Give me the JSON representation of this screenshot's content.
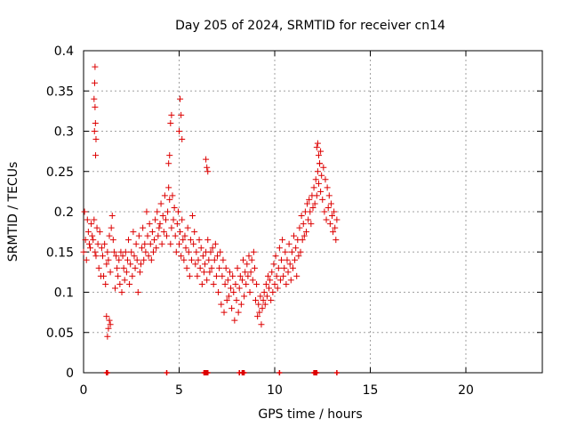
{
  "chart_data": {
    "type": "scatter",
    "title": "Day 205 of 2024, SRMTID for receiver cn14",
    "xlabel": "GPS time / hours",
    "ylabel": "SRMTID / TECUs",
    "xlim": [
      0,
      24
    ],
    "ylim": [
      0,
      0.4
    ],
    "xticks": [
      0,
      5,
      10,
      15,
      20
    ],
    "yticks": [
      0,
      0.05,
      0.1,
      0.15,
      0.2,
      0.25,
      0.3,
      0.35,
      0.4
    ],
    "ytick_labels": [
      "0",
      "0.05",
      "0.1",
      "0.15",
      "0.2",
      "0.25",
      "0.3",
      "0.35",
      "0.4"
    ],
    "grid": true,
    "marker": "+",
    "color": "#dd0000",
    "series": [
      {
        "name": "SRMTID",
        "x": [
          0.0,
          0.05,
          0.1,
          0.15,
          0.2,
          0.25,
          0.3,
          0.35,
          0.4,
          0.45,
          0.5,
          0.55,
          0.6,
          0.65,
          0.7,
          0.75,
          0.8,
          0.85,
          0.9,
          0.95,
          1.0,
          1.05,
          1.1,
          1.15,
          1.2,
          1.25,
          1.3,
          1.35,
          1.4,
          1.45,
          1.5,
          1.55,
          1.6,
          1.65,
          1.7,
          1.75,
          1.8,
          1.85,
          1.9,
          1.95,
          2.0,
          2.05,
          2.1,
          2.15,
          2.2,
          2.25,
          2.3,
          2.35,
          2.4,
          2.45,
          2.5,
          2.55,
          2.6,
          2.65,
          2.7,
          2.75,
          2.8,
          2.85,
          2.9,
          2.95,
          3.0,
          3.05,
          3.1,
          3.15,
          3.2,
          3.25,
          3.3,
          3.35,
          3.4,
          3.45,
          3.5,
          3.55,
          3.6,
          3.65,
          3.7,
          3.75,
          3.8,
          3.85,
          3.9,
          3.95,
          4.0,
          4.05,
          4.1,
          4.15,
          4.2,
          4.25,
          4.3,
          4.35,
          4.4,
          4.45,
          4.5,
          4.55,
          4.6,
          4.65,
          4.7,
          4.75,
          4.8,
          4.85,
          4.9,
          4.95,
          5.0,
          5.05,
          5.1,
          5.15,
          5.2,
          5.25,
          5.3,
          5.35,
          5.4,
          5.45,
          5.5,
          5.55,
          5.6,
          5.65,
          5.7,
          5.75,
          5.8,
          5.85,
          5.9,
          5.95,
          6.0,
          6.05,
          6.1,
          6.15,
          6.2,
          6.25,
          6.3,
          6.35,
          6.4,
          6.45,
          6.5,
          6.55,
          6.6,
          6.65,
          6.7,
          6.75,
          6.8,
          6.85,
          6.9,
          6.95,
          7.0,
          7.05,
          7.1,
          7.15,
          7.2,
          7.25,
          7.3,
          7.35,
          7.4,
          7.45,
          7.5,
          7.55,
          7.6,
          7.65,
          7.7,
          7.75,
          7.8,
          7.85,
          7.9,
          7.95,
          8.0,
          8.05,
          8.1,
          8.15,
          8.2,
          8.25,
          8.3,
          8.35,
          8.4,
          8.45,
          8.5,
          8.55,
          8.6,
          8.65,
          8.7,
          8.75,
          8.8,
          8.85,
          8.9,
          8.95,
          9.0,
          9.05,
          9.1,
          9.15,
          9.2,
          9.25,
          9.3,
          9.35,
          9.4,
          9.45,
          9.5,
          9.55,
          9.6,
          9.65,
          9.7,
          9.75,
          9.8,
          9.85,
          9.9,
          9.95,
          10.0,
          10.05,
          10.1,
          10.15,
          10.2,
          10.25,
          10.3,
          10.35,
          10.4,
          10.45,
          10.5,
          10.55,
          10.6,
          10.65,
          10.7,
          10.75,
          10.8,
          10.85,
          10.9,
          10.95,
          11.0,
          11.05,
          11.1,
          11.15,
          11.2,
          11.25,
          11.3,
          11.35,
          11.4,
          11.45,
          11.5,
          11.55,
          11.6,
          11.65,
          11.7,
          11.75,
          11.8,
          11.85,
          11.9,
          11.95,
          12.0,
          12.05,
          12.1,
          12.15,
          12.2,
          12.25,
          12.3,
          12.35,
          12.4,
          12.45,
          12.5,
          12.55,
          12.6,
          12.65,
          12.7,
          12.75,
          12.8,
          12.85,
          12.9,
          12.95,
          13.0,
          13.05,
          13.1,
          13.15,
          13.2,
          13.25,
          0.55,
          0.58,
          0.6,
          0.62,
          0.65,
          0.57,
          0.6,
          0.63,
          4.45,
          4.5,
          4.55,
          4.6,
          5.0,
          5.05,
          5.1,
          5.15,
          6.4,
          6.45,
          6.5,
          12.2,
          12.25,
          12.3,
          12.35,
          12.4,
          1.25,
          1.3,
          1.35,
          1.4,
          1.2
        ],
        "y": [
          0.15,
          0.2,
          0.165,
          0.14,
          0.19,
          0.175,
          0.16,
          0.155,
          0.185,
          0.17,
          0.165,
          0.19,
          0.15,
          0.145,
          0.18,
          0.16,
          0.13,
          0.175,
          0.12,
          0.155,
          0.145,
          0.12,
          0.16,
          0.11,
          0.135,
          0.15,
          0.14,
          0.17,
          0.125,
          0.18,
          0.195,
          0.165,
          0.15,
          0.105,
          0.145,
          0.13,
          0.12,
          0.14,
          0.11,
          0.15,
          0.1,
          0.145,
          0.13,
          0.115,
          0.15,
          0.125,
          0.14,
          0.165,
          0.11,
          0.135,
          0.15,
          0.12,
          0.175,
          0.145,
          0.13,
          0.16,
          0.14,
          0.1,
          0.17,
          0.125,
          0.135,
          0.155,
          0.18,
          0.14,
          0.16,
          0.15,
          0.2,
          0.17,
          0.145,
          0.185,
          0.16,
          0.14,
          0.175,
          0.15,
          0.165,
          0.19,
          0.155,
          0.2,
          0.17,
          0.18,
          0.185,
          0.21,
          0.16,
          0.195,
          0.175,
          0.22,
          0.19,
          0.17,
          0.2,
          0.23,
          0.215,
          0.16,
          0.18,
          0.22,
          0.19,
          0.205,
          0.17,
          0.15,
          0.185,
          0.2,
          0.16,
          0.175,
          0.145,
          0.19,
          0.165,
          0.14,
          0.17,
          0.155,
          0.13,
          0.18,
          0.15,
          0.12,
          0.165,
          0.14,
          0.195,
          0.16,
          0.175,
          0.135,
          0.15,
          0.12,
          0.14,
          0.165,
          0.13,
          0.155,
          0.11,
          0.145,
          0.125,
          0.135,
          0.15,
          0.115,
          0.165,
          0.14,
          0.125,
          0.15,
          0.13,
          0.155,
          0.11,
          0.14,
          0.16,
          0.12,
          0.145,
          0.1,
          0.13,
          0.15,
          0.085,
          0.12,
          0.14,
          0.075,
          0.11,
          0.13,
          0.09,
          0.115,
          0.095,
          0.125,
          0.105,
          0.08,
          0.12,
          0.1,
          0.065,
          0.11,
          0.09,
          0.13,
          0.075,
          0.105,
          0.12,
          0.085,
          0.115,
          0.14,
          0.095,
          0.125,
          0.11,
          0.135,
          0.12,
          0.145,
          0.1,
          0.125,
          0.14,
          0.115,
          0.15,
          0.13,
          0.09,
          0.11,
          0.07,
          0.085,
          0.075,
          0.095,
          0.06,
          0.08,
          0.09,
          0.1,
          0.085,
          0.11,
          0.095,
          0.12,
          0.105,
          0.115,
          0.09,
          0.125,
          0.1,
          0.135,
          0.11,
          0.145,
          0.12,
          0.105,
          0.13,
          0.155,
          0.115,
          0.14,
          0.165,
          0.12,
          0.13,
          0.15,
          0.11,
          0.14,
          0.125,
          0.16,
          0.135,
          0.115,
          0.15,
          0.13,
          0.17,
          0.14,
          0.155,
          0.12,
          0.165,
          0.145,
          0.18,
          0.15,
          0.195,
          0.165,
          0.185,
          0.17,
          0.2,
          0.175,
          0.21,
          0.19,
          0.215,
          0.2,
          0.185,
          0.22,
          0.205,
          0.23,
          0.21,
          0.24,
          0.22,
          0.25,
          0.235,
          0.26,
          0.225,
          0.245,
          0.215,
          0.255,
          0.2,
          0.24,
          0.19,
          0.23,
          0.205,
          0.22,
          0.185,
          0.21,
          0.195,
          0.175,
          0.2,
          0.18,
          0.165,
          0.19,
          0.34,
          0.36,
          0.38,
          0.31,
          0.29,
          0.3,
          0.33,
          0.27,
          0.26,
          0.27,
          0.31,
          0.32,
          0.3,
          0.34,
          0.32,
          0.29,
          0.265,
          0.255,
          0.25,
          0.28,
          0.285,
          0.27,
          0.26,
          0.275,
          0.045,
          0.055,
          0.065,
          0.06,
          0.07
        ]
      }
    ],
    "bottom_markers_x": [
      1.2,
      1.25,
      4.35,
      6.3,
      6.35,
      6.4,
      6.45,
      6.5,
      8.15,
      8.3,
      8.35,
      8.4,
      10.25,
      12.05,
      12.1,
      12.15,
      12.2,
      13.25
    ]
  }
}
